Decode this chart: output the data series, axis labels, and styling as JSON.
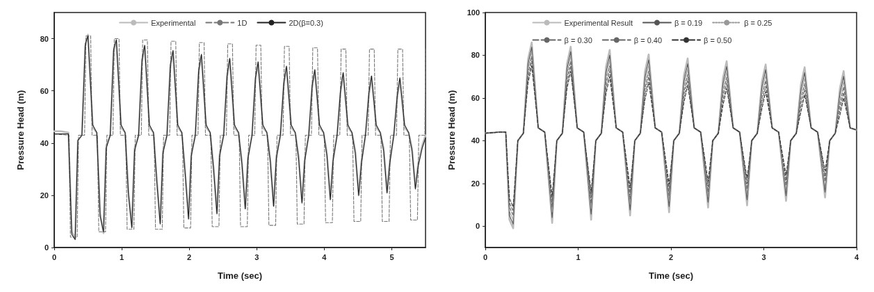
{
  "chart_data": [
    {
      "type": "line",
      "xlabel": "Time (sec)",
      "ylabel": "Pressure Head (m)",
      "xlim": [
        0,
        5.5
      ],
      "ylim": [
        0,
        90
      ],
      "xticks": [
        0,
        1,
        2,
        3,
        4,
        5
      ],
      "yticks": [
        0,
        20,
        40,
        60,
        80
      ],
      "legend": "top",
      "grid": false,
      "marker": "none",
      "x": [
        0,
        0.1,
        0.21,
        0.26,
        0.31,
        0.35,
        0.41,
        0.46,
        0.5,
        0.57,
        0.63,
        0.68,
        0.73,
        0.77,
        0.83,
        0.88,
        0.92,
        0.99,
        1.05,
        1.1,
        1.15,
        1.19,
        1.25,
        1.3,
        1.34,
        1.41,
        1.47,
        1.52,
        1.57,
        1.61,
        1.67,
        1.72,
        1.76,
        1.83,
        1.89,
        1.94,
        1.99,
        2.03,
        2.09,
        2.14,
        2.18,
        2.25,
        2.31,
        2.36,
        2.41,
        2.45,
        2.51,
        2.56,
        2.6,
        2.67,
        2.73,
        2.78,
        2.83,
        2.87,
        2.93,
        2.98,
        3.02,
        3.09,
        3.15,
        3.2,
        3.25,
        3.29,
        3.35,
        3.4,
        3.44,
        3.51,
        3.57,
        3.62,
        3.67,
        3.71,
        3.77,
        3.82,
        3.86,
        3.93,
        3.99,
        4.04,
        4.09,
        4.13,
        4.19,
        4.24,
        4.28,
        4.35,
        4.41,
        4.46,
        4.51,
        4.55,
        4.61,
        4.66,
        4.7,
        4.77,
        4.83,
        4.88,
        4.93,
        4.97,
        5.03,
        5.08,
        5.12,
        5.19,
        5.25,
        5.3,
        5.35,
        5.39,
        5.45,
        5.5
      ],
      "series": [
        {
          "name": "Experimental",
          "color": "#bbbbbb",
          "line_style": "solid",
          "values": [
            44.5,
            44.5,
            44,
            6,
            3.5,
            41,
            43,
            77,
            81.5,
            46,
            44,
            13,
            5.5,
            39,
            43,
            75,
            79.5,
            46,
            44,
            21,
            8,
            38,
            43,
            71,
            77,
            46,
            44,
            26,
            9.5,
            37,
            43,
            69,
            75,
            46,
            44,
            29,
            11,
            36,
            43,
            67,
            73.5,
            46,
            44,
            31,
            13,
            36,
            43,
            65,
            72,
            46,
            44,
            33,
            15,
            35,
            43,
            64,
            71,
            46,
            44,
            34,
            16,
            35,
            43,
            62,
            69,
            46,
            44,
            35,
            17.5,
            34,
            43,
            61,
            68,
            46,
            44,
            36,
            18.5,
            34,
            43,
            59,
            66.5,
            46,
            44,
            37,
            20,
            33,
            43,
            58,
            65.5,
            46,
            44,
            38,
            21,
            33,
            43,
            57,
            64.5,
            46,
            44,
            38,
            23,
            32,
            39,
            43
          ]
        },
        {
          "name": "1D",
          "color": "#777777",
          "line_style": "dashed",
          "x": [
            0,
            0.22,
            0.24,
            0.34,
            0.36,
            0.45,
            0.47,
            0.54,
            0.56,
            0.64,
            0.66,
            0.76,
            0.78,
            0.87,
            0.89,
            0.96,
            0.98,
            1.06,
            1.08,
            1.18,
            1.2,
            1.29,
            1.31,
            1.38,
            1.4,
            1.48,
            1.5,
            1.6,
            1.62,
            1.71,
            1.73,
            1.8,
            1.82,
            1.9,
            1.92,
            2.02,
            2.04,
            2.13,
            2.15,
            2.22,
            2.24,
            2.32,
            2.34,
            2.44,
            2.46,
            2.55,
            2.57,
            2.64,
            2.66,
            2.74,
            2.76,
            2.86,
            2.88,
            2.97,
            2.99,
            3.06,
            3.08,
            3.16,
            3.18,
            3.28,
            3.3,
            3.39,
            3.41,
            3.48,
            3.5,
            3.58,
            3.6,
            3.7,
            3.72,
            3.81,
            3.83,
            3.9,
            3.92,
            4,
            4.02,
            4.12,
            4.14,
            4.23,
            4.25,
            4.32,
            4.34,
            4.42,
            4.44,
            4.54,
            4.56,
            4.65,
            4.67,
            4.74,
            4.76,
            4.84,
            4.86,
            4.96,
            4.98,
            5.07,
            5.09,
            5.16,
            5.18,
            5.26,
            5.28,
            5.38,
            5.4,
            5.49,
            5.5
          ],
          "values": [
            43.5,
            43,
            4,
            4,
            43,
            43,
            81,
            81,
            43,
            43,
            6,
            6,
            43,
            43,
            80,
            80,
            43,
            43,
            7,
            7,
            43,
            43,
            79.5,
            79.5,
            43,
            43,
            7,
            7,
            43,
            43,
            79,
            79,
            43,
            43,
            7.5,
            7.5,
            43,
            43,
            78.5,
            78.5,
            43,
            43,
            8,
            8,
            43,
            43,
            78,
            78,
            43,
            43,
            8,
            8,
            43,
            43,
            77.5,
            77.5,
            43,
            43,
            8.5,
            8.5,
            43,
            43,
            77,
            77,
            43,
            43,
            9,
            9,
            43,
            43,
            76.5,
            76.5,
            43,
            43,
            9.5,
            9.5,
            43,
            43,
            76,
            76,
            43,
            43,
            10,
            10,
            43,
            43,
            76,
            76,
            43,
            43,
            10,
            10,
            43,
            43,
            76,
            76,
            43,
            43,
            10.5,
            10.5,
            43,
            43,
            76
          ]
        },
        {
          "name": "2D(β=0.3)",
          "color": "#222222",
          "line_style": "solid",
          "values": [
            43.5,
            43.5,
            43.5,
            5,
            3,
            41,
            43,
            78,
            81,
            47,
            44,
            12,
            6,
            38,
            43,
            76,
            79.5,
            47,
            44,
            20,
            7.5,
            37,
            43,
            72,
            77.5,
            47,
            44,
            25,
            9,
            36,
            43,
            70,
            75.5,
            47,
            44,
            28,
            11,
            35,
            43,
            68,
            74,
            47,
            44,
            30,
            13,
            35,
            43,
            66,
            72.5,
            47,
            44,
            32,
            14.8,
            34,
            43,
            65,
            71,
            47,
            44,
            33,
            15.8,
            34,
            43,
            63,
            69.5,
            47,
            44,
            34,
            17,
            33,
            43,
            62,
            68,
            47,
            44,
            35,
            18.3,
            33,
            43,
            60,
            67,
            47,
            44,
            36,
            20,
            32,
            43,
            59,
            65.7,
            47,
            44,
            37,
            21,
            32,
            43,
            58,
            65,
            47,
            44,
            37,
            22.4,
            31,
            38,
            42
          ]
        }
      ]
    },
    {
      "type": "line",
      "xlabel": "Time (sec)",
      "ylabel": "Pressure Head (m)",
      "xlim": [
        0,
        4
      ],
      "ylim": [
        -10,
        100
      ],
      "xticks": [
        0,
        1,
        2,
        3,
        4
      ],
      "yticks": [
        0,
        20,
        40,
        60,
        80,
        100
      ],
      "legend": "top",
      "grid": false,
      "marker": "none",
      "x": [
        0,
        0.15,
        0.22,
        0.26,
        0.3,
        0.35,
        0.41,
        0.46,
        0.5,
        0.57,
        0.64,
        0.68,
        0.72,
        0.77,
        0.83,
        0.88,
        0.92,
        0.99,
        1.06,
        1.1,
        1.14,
        1.19,
        1.25,
        1.3,
        1.34,
        1.41,
        1.48,
        1.52,
        1.56,
        1.61,
        1.67,
        1.72,
        1.76,
        1.83,
        1.9,
        1.94,
        1.98,
        2.03,
        2.09,
        2.14,
        2.18,
        2.25,
        2.32,
        2.36,
        2.4,
        2.45,
        2.51,
        2.56,
        2.6,
        2.67,
        2.74,
        2.78,
        2.82,
        2.87,
        2.93,
        2.98,
        3.02,
        3.09,
        3.16,
        3.2,
        3.24,
        3.29,
        3.35,
        3.4,
        3.44,
        3.51,
        3.58,
        3.62,
        3.66,
        3.71,
        3.77,
        3.82,
        3.86,
        3.93,
        4
      ],
      "series": [
        {
          "name": "Experimental Result",
          "color": "#bbbbbb",
          "line_style": "solid",
          "values": [
            43.5,
            44,
            44,
            3,
            -1,
            40,
            43.5,
            78,
            86,
            46,
            44,
            23,
            1.5,
            40,
            43.5,
            76,
            84,
            46,
            44,
            24,
            3,
            40,
            43.5,
            74.5,
            82.5,
            46,
            44,
            25,
            5,
            40,
            43.5,
            72.4,
            80.4,
            46,
            44,
            25,
            6.5,
            40,
            43.5,
            70.5,
            78.5,
            46,
            44,
            26,
            8.7,
            40,
            43.5,
            69.2,
            77.2,
            46,
            44,
            27,
            9.7,
            40,
            43.5,
            67.7,
            75.7,
            46,
            44,
            28,
            11.8,
            40,
            43.5,
            66.4,
            74.4,
            46,
            44,
            29,
            13.4,
            40,
            43.5,
            64.6,
            72.6,
            46,
            45
          ]
        },
        {
          "name": "β = 0.19",
          "color": "#555555",
          "line_style": "solid",
          "values": [
            43.5,
            44,
            44,
            5,
            1,
            40,
            43.5,
            75.8,
            83.8,
            46,
            44,
            24,
            4,
            40,
            43.5,
            73.7,
            81.7,
            46,
            44,
            25,
            5.6,
            40,
            43.5,
            72,
            80,
            46,
            44,
            26,
            7.6,
            40,
            43.5,
            69.8,
            77.8,
            46,
            44,
            27,
            9.1,
            40,
            43.5,
            68,
            76,
            46,
            44,
            28,
            11.2,
            40,
            43.5,
            66.7,
            74.7,
            46,
            44,
            28,
            12.3,
            40,
            43.5,
            65.2,
            73.2,
            46,
            44,
            29,
            14.2,
            40,
            43.5,
            63.8,
            71.8,
            46,
            44,
            30,
            15.9,
            40,
            43.5,
            62.1,
            70.1,
            46,
            45
          ]
        },
        {
          "name": "β = 0.25",
          "color": "#999999",
          "line_style": "dotted",
          "values": [
            43.5,
            44,
            44,
            7,
            3,
            40,
            43.5,
            73.6,
            81.6,
            46,
            44,
            25,
            6.5,
            40,
            43.5,
            71.4,
            79.4,
            46,
            44,
            26,
            8.2,
            40,
            43.5,
            69.5,
            77.5,
            46,
            44,
            27,
            10.2,
            40,
            43.5,
            67.2,
            75.2,
            46,
            44,
            28,
            11.7,
            40,
            43.5,
            65.5,
            73.5,
            46,
            44,
            29,
            13.6,
            40,
            43.5,
            64.1,
            72.1,
            46,
            44,
            29,
            14.8,
            40,
            43.5,
            62.6,
            70.6,
            46,
            44,
            30,
            16.7,
            40,
            43.5,
            61.3,
            69.3,
            46,
            44,
            31,
            18.4,
            40,
            43.5,
            59.6,
            67.6,
            46,
            45
          ]
        },
        {
          "name": "β = 0.30",
          "color": "#666666",
          "line_style": "dashed",
          "values": [
            43.5,
            44,
            44,
            9,
            5,
            40,
            43.5,
            71.4,
            79.4,
            46,
            44,
            27,
            9,
            40,
            43.5,
            69.1,
            77.1,
            46,
            44,
            27,
            10.8,
            40,
            43.5,
            67,
            75,
            46,
            44,
            28,
            12.8,
            40,
            43.5,
            64.6,
            72.6,
            46,
            44,
            29,
            14.4,
            40,
            43.5,
            63,
            71,
            46,
            44,
            30,
            16.1,
            40,
            43.5,
            61.6,
            69.6,
            46,
            44,
            31,
            17.4,
            40,
            43.5,
            60.1,
            68.1,
            46,
            44,
            32,
            19.1,
            40,
            43.5,
            58.7,
            66.7,
            46,
            44,
            33,
            21,
            40,
            43.5,
            57.1,
            65.1,
            46,
            45
          ]
        },
        {
          "name": "β = 0.40",
          "color": "#666666",
          "line_style": "dashed",
          "values": [
            43.5,
            44,
            44,
            11,
            7,
            40,
            43.5,
            69.2,
            77.2,
            46,
            44,
            28,
            11.5,
            40,
            43.5,
            66.8,
            74.8,
            46,
            44,
            29,
            13.4,
            40,
            43.5,
            64.5,
            72.5,
            46,
            44,
            30,
            15.4,
            40,
            43.5,
            62,
            70,
            46,
            44,
            31,
            17,
            40,
            43.5,
            60.5,
            68.5,
            46,
            44,
            31,
            18.5,
            40,
            43.5,
            59,
            67,
            46,
            44,
            32,
            19.9,
            40,
            43.5,
            57.5,
            65.5,
            46,
            44,
            33,
            21.6,
            40,
            43.5,
            56.1,
            64.1,
            46,
            44,
            34,
            23.5,
            40,
            43.5,
            54.5,
            62.5,
            46,
            45
          ]
        },
        {
          "name": "β = 0.50",
          "color": "#333333",
          "line_style": "dashed",
          "values": [
            43.5,
            44,
            44,
            13,
            9,
            40,
            43.5,
            67,
            75,
            46,
            44,
            29,
            14,
            40,
            43.5,
            64.5,
            72.5,
            46,
            44,
            30,
            16,
            40,
            43.5,
            62,
            70,
            46,
            44,
            31,
            18,
            40,
            43.5,
            59.3,
            67.3,
            46,
            44,
            32,
            19.6,
            40,
            43.5,
            58,
            66,
            46,
            44,
            33,
            21,
            40,
            43.5,
            56.5,
            64.5,
            46,
            44,
            33,
            22.5,
            40,
            43.5,
            55,
            63,
            46,
            44,
            34,
            24,
            40,
            43.5,
            53.5,
            61.5,
            46,
            44,
            35,
            26,
            40,
            43.5,
            52,
            60,
            46,
            45
          ]
        }
      ]
    }
  ]
}
